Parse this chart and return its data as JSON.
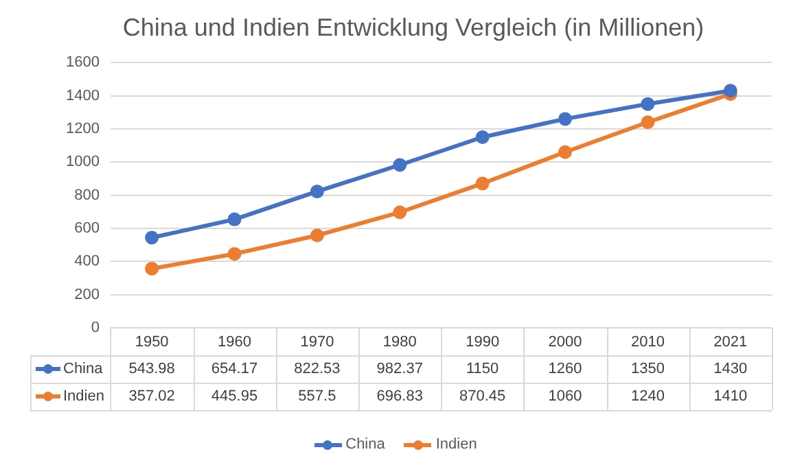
{
  "chart_data": {
    "type": "line",
    "title": "China und Indien Entwicklung Vergleich (in Millionen)",
    "categories": [
      "1950",
      "1960",
      "1970",
      "1980",
      "1990",
      "2000",
      "2010",
      "2021"
    ],
    "series": [
      {
        "name": "China",
        "color": "#4472c4",
        "values": [
          543.98,
          654.17,
          822.53,
          982.37,
          1150,
          1260,
          1350,
          1430
        ]
      },
      {
        "name": "Indien",
        "color": "#ed7d31",
        "values": [
          357.02,
          445.95,
          557.5,
          696.83,
          870.45,
          1060,
          1240,
          1410
        ]
      }
    ],
    "ylim": [
      0,
      1600
    ],
    "yticks": [
      0,
      200,
      400,
      600,
      800,
      1000,
      1200,
      1400,
      1600
    ],
    "grid": "y",
    "legend": "bottom",
    "marker": "circle",
    "line_style": "solid",
    "data_labels": true
  }
}
